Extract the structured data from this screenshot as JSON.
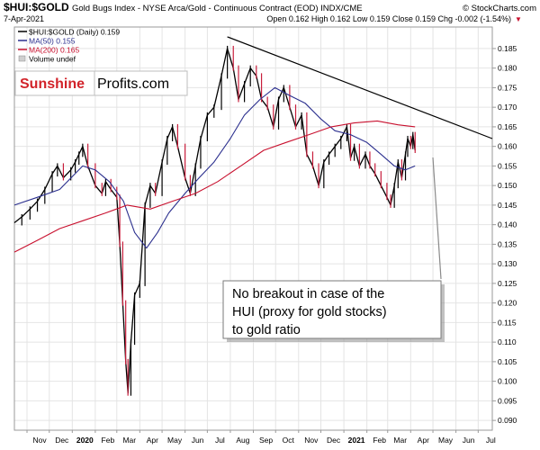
{
  "header": {
    "symbol": "$HUI:$GOLD",
    "description": "Gold Bugs Index - NYSE Arca/Gold - Continuous Contract (EOD) INDX/CME",
    "source": "© StockCharts.com",
    "date": "7-Apr-2021",
    "quote": "Open 0.162  High 0.162  Low 0.159  Close 0.159  Chg -0.002 (-1.54%)",
    "arrow": "▼"
  },
  "legend": {
    "main": "$HUI:$GOLD (Daily) 0.159",
    "ma50": "MA(50) 0.155",
    "ma200": "MA(200) 0.165",
    "volume": "Volume undef"
  },
  "logo": {
    "part1": "Sunshine",
    "part2": "Profits.com"
  },
  "annotation": {
    "line1": "No breakout in case of the",
    "line2": "HUI (proxy for gold stocks)",
    "line3": "to gold ratio"
  },
  "colors": {
    "price": "#000000",
    "price_down": "#c81e3c",
    "ma50": "#2b2f8e",
    "ma200": "#c8102e",
    "trendline": "#000000",
    "logo_red": "#d2232a",
    "grid": "#e4e4e4"
  },
  "chart_data": {
    "type": "line",
    "x_axis": {
      "ticks": [
        "Nov",
        "Dec",
        "2020",
        "Feb",
        "Mar",
        "Apr",
        "May",
        "Jun",
        "Jul",
        "Aug",
        "Sep",
        "Oct",
        "Nov",
        "Dec",
        "2021",
        "Feb",
        "Mar",
        "Apr",
        "May",
        "Jun",
        "Jul"
      ],
      "range": [
        "2019-10-15",
        "2021-07-20"
      ]
    },
    "y_axis": {
      "ticks": [
        0.09,
        0.095,
        0.1,
        0.105,
        0.11,
        0.115,
        0.12,
        0.125,
        0.13,
        0.135,
        0.14,
        0.145,
        0.15,
        0.155,
        0.16,
        0.165,
        0.17,
        0.175,
        0.18,
        0.185
      ],
      "ylim": [
        0.0875,
        0.1905
      ],
      "position": "right"
    },
    "grid": true,
    "series": [
      {
        "name": "$HUI:$GOLD",
        "points": [
          [
            "2019-10-15",
            0.1405
          ],
          [
            "2019-10-25",
            0.142
          ],
          [
            "2019-11-05",
            0.144
          ],
          [
            "2019-11-15",
            0.146
          ],
          [
            "2019-11-25",
            0.149
          ],
          [
            "2019-12-05",
            0.153
          ],
          [
            "2019-12-12",
            0.155
          ],
          [
            "2019-12-20",
            0.152
          ],
          [
            "2019-12-30",
            0.154
          ],
          [
            "2020-01-05",
            0.156
          ],
          [
            "2020-01-10",
            0.158
          ],
          [
            "2020-01-15",
            0.16
          ],
          [
            "2020-01-22",
            0.155
          ],
          [
            "2020-02-01",
            0.15
          ],
          [
            "2020-02-10",
            0.148
          ],
          [
            "2020-02-15",
            0.151
          ],
          [
            "2020-02-22",
            0.149
          ],
          [
            "2020-03-01",
            0.147
          ],
          [
            "2020-03-05",
            0.135
          ],
          [
            "2020-03-09",
            0.12
          ],
          [
            "2020-03-13",
            0.105
          ],
          [
            "2020-03-16",
            0.097
          ],
          [
            "2020-03-20",
            0.11
          ],
          [
            "2020-03-25",
            0.122
          ],
          [
            "2020-04-01",
            0.125
          ],
          [
            "2020-04-08",
            0.145
          ],
          [
            "2020-04-15",
            0.15
          ],
          [
            "2020-04-22",
            0.148
          ],
          [
            "2020-05-01",
            0.156
          ],
          [
            "2020-05-08",
            0.162
          ],
          [
            "2020-05-15",
            0.165
          ],
          [
            "2020-05-22",
            0.16
          ],
          [
            "2020-06-01",
            0.152
          ],
          [
            "2020-06-08",
            0.148
          ],
          [
            "2020-06-15",
            0.155
          ],
          [
            "2020-06-22",
            0.162
          ],
          [
            "2020-07-01",
            0.168
          ],
          [
            "2020-07-10",
            0.17
          ],
          [
            "2020-07-20",
            0.178
          ],
          [
            "2020-07-28",
            0.185
          ],
          [
            "2020-08-05",
            0.18
          ],
          [
            "2020-08-12",
            0.172
          ],
          [
            "2020-08-20",
            0.176
          ],
          [
            "2020-08-28",
            0.18
          ],
          [
            "2020-09-05",
            0.178
          ],
          [
            "2020-09-12",
            0.172
          ],
          [
            "2020-09-20",
            0.17
          ],
          [
            "2020-09-28",
            0.165
          ],
          [
            "2020-10-05",
            0.172
          ],
          [
            "2020-10-12",
            0.175
          ],
          [
            "2020-10-20",
            0.17
          ],
          [
            "2020-10-28",
            0.165
          ],
          [
            "2020-11-05",
            0.168
          ],
          [
            "2020-11-12",
            0.158
          ],
          [
            "2020-11-20",
            0.155
          ],
          [
            "2020-11-28",
            0.15
          ],
          [
            "2020-12-05",
            0.156
          ],
          [
            "2020-12-12",
            0.158
          ],
          [
            "2020-12-20",
            0.16
          ],
          [
            "2020-12-28",
            0.162
          ],
          [
            "2021-01-05",
            0.165
          ],
          [
            "2021-01-10",
            0.157
          ],
          [
            "2021-01-15",
            0.16
          ],
          [
            "2021-01-22",
            0.155
          ],
          [
            "2021-01-30",
            0.158
          ],
          [
            "2021-02-05",
            0.155
          ],
          [
            "2021-02-12",
            0.153
          ],
          [
            "2021-02-20",
            0.15
          ],
          [
            "2021-02-28",
            0.147
          ],
          [
            "2021-03-05",
            0.145
          ],
          [
            "2021-03-10",
            0.15
          ],
          [
            "2021-03-15",
            0.156
          ],
          [
            "2021-03-20",
            0.152
          ],
          [
            "2021-03-25",
            0.158
          ],
          [
            "2021-03-28",
            0.162
          ],
          [
            "2021-04-01",
            0.16
          ],
          [
            "2021-04-04",
            0.163
          ],
          [
            "2021-04-07",
            0.159
          ]
        ]
      },
      {
        "name": "MA(50)",
        "points": [
          [
            "2019-10-15",
            0.145
          ],
          [
            "2019-11-15",
            0.147
          ],
          [
            "2019-12-15",
            0.149
          ],
          [
            "2020-01-15",
            0.155
          ],
          [
            "2020-02-01",
            0.154
          ],
          [
            "2020-02-20",
            0.151
          ],
          [
            "2020-03-10",
            0.146
          ],
          [
            "2020-03-25",
            0.138
          ],
          [
            "2020-04-10",
            0.134
          ],
          [
            "2020-04-25",
            0.138
          ],
          [
            "2020-05-10",
            0.143
          ],
          [
            "2020-06-01",
            0.148
          ],
          [
            "2020-06-20",
            0.152
          ],
          [
            "2020-07-10",
            0.156
          ],
          [
            "2020-08-01",
            0.162
          ],
          [
            "2020-08-20",
            0.168
          ],
          [
            "2020-09-10",
            0.172
          ],
          [
            "2020-09-30",
            0.175
          ],
          [
            "2020-10-20",
            0.173
          ],
          [
            "2020-11-10",
            0.171
          ],
          [
            "2020-12-01",
            0.167
          ],
          [
            "2020-12-20",
            0.164
          ],
          [
            "2021-01-10",
            0.163
          ],
          [
            "2021-02-01",
            0.161
          ],
          [
            "2021-02-20",
            0.158
          ],
          [
            "2021-03-10",
            0.155
          ],
          [
            "2021-03-25",
            0.154
          ],
          [
            "2021-04-07",
            0.155
          ]
        ]
      },
      {
        "name": "MA(200)",
        "points": [
          [
            "2019-10-15",
            0.133
          ],
          [
            "2019-11-15",
            0.136
          ],
          [
            "2019-12-15",
            0.139
          ],
          [
            "2020-01-15",
            0.141
          ],
          [
            "2020-02-15",
            0.143
          ],
          [
            "2020-03-15",
            0.145
          ],
          [
            "2020-04-15",
            0.144
          ],
          [
            "2020-05-15",
            0.146
          ],
          [
            "2020-06-15",
            0.148
          ],
          [
            "2020-07-15",
            0.151
          ],
          [
            "2020-08-15",
            0.155
          ],
          [
            "2020-09-15",
            0.159
          ],
          [
            "2020-10-15",
            0.161
          ],
          [
            "2020-11-15",
            0.163
          ],
          [
            "2020-12-15",
            0.165
          ],
          [
            "2021-01-15",
            0.166
          ],
          [
            "2021-02-15",
            0.1665
          ],
          [
            "2021-03-15",
            0.1655
          ],
          [
            "2021-04-07",
            0.165
          ]
        ]
      },
      {
        "name": "Trendline",
        "points": [
          [
            "2020-07-28",
            0.188
          ],
          [
            "2021-07-20",
            0.162
          ]
        ]
      }
    ]
  }
}
